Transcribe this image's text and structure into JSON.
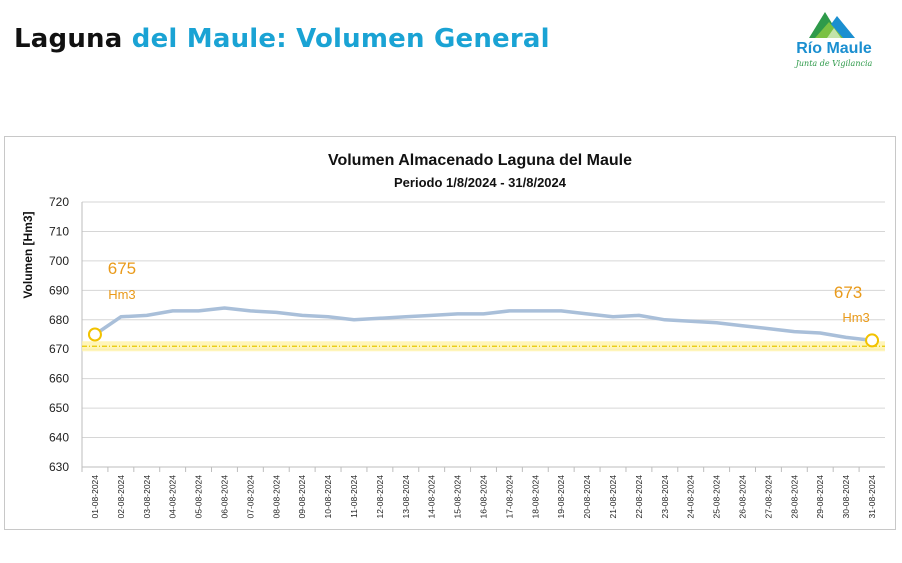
{
  "header": {
    "title_part1": "Laguna",
    "title_part2": "del Maule: Volumen General"
  },
  "logo": {
    "name": "Río Maule",
    "subtitle": "Junta de Vigilancia",
    "colors": {
      "top": "#1b8fd0",
      "middle": "#2e9a4a",
      "front": "#7ac143"
    }
  },
  "chart_data": {
    "type": "line",
    "title": "Volumen Almacenado Laguna del Maule",
    "subtitle": "Periodo 1/8/2024 - 31/8/2024",
    "xlabel": "",
    "ylabel": "Volumen [Hm3]",
    "ylim": [
      630,
      720
    ],
    "yticks": [
      630,
      640,
      650,
      660,
      670,
      680,
      690,
      700,
      710,
      720
    ],
    "grid": true,
    "categories": [
      "01-08-2024",
      "02-08-2024",
      "03-08-2024",
      "04-08-2024",
      "05-08-2024",
      "06-08-2024",
      "07-08-2024",
      "08-08-2024",
      "09-08-2024",
      "10-08-2024",
      "11-08-2024",
      "12-08-2024",
      "13-08-2024",
      "14-08-2024",
      "15-08-2024",
      "16-08-2024",
      "17-08-2024",
      "18-08-2024",
      "19-08-2024",
      "20-08-2024",
      "21-08-2024",
      "22-08-2024",
      "23-08-2024",
      "24-08-2024",
      "25-08-2024",
      "26-08-2024",
      "27-08-2024",
      "28-08-2024",
      "29-08-2024",
      "30-08-2024",
      "31-08-2024"
    ],
    "series": [
      {
        "values": [
          675.0,
          681.0,
          681.5,
          683.0,
          683.0,
          684.0,
          683.0,
          682.5,
          681.5,
          681.0,
          680.0,
          680.5,
          681.0,
          681.5,
          682.0,
          682.0,
          683.0,
          683.0,
          683.0,
          682.0,
          681.0,
          681.5,
          680.0,
          679.5,
          679.0,
          678.0,
          677.0,
          676.0,
          675.5,
          674.0,
          673.0
        ],
        "color": "#a9bfd9"
      }
    ],
    "reference_line": {
      "value": 671,
      "color": "#e6c800"
    },
    "annotations": [
      {
        "category": "01-08-2024",
        "value_text": "675",
        "unit_text": "Hm3",
        "color": "#e99a1a"
      },
      {
        "category": "31-08-2024",
        "value_text": "673",
        "unit_text": "Hm3",
        "color": "#e99a1a"
      }
    ],
    "marker_color": "#f2c200"
  }
}
